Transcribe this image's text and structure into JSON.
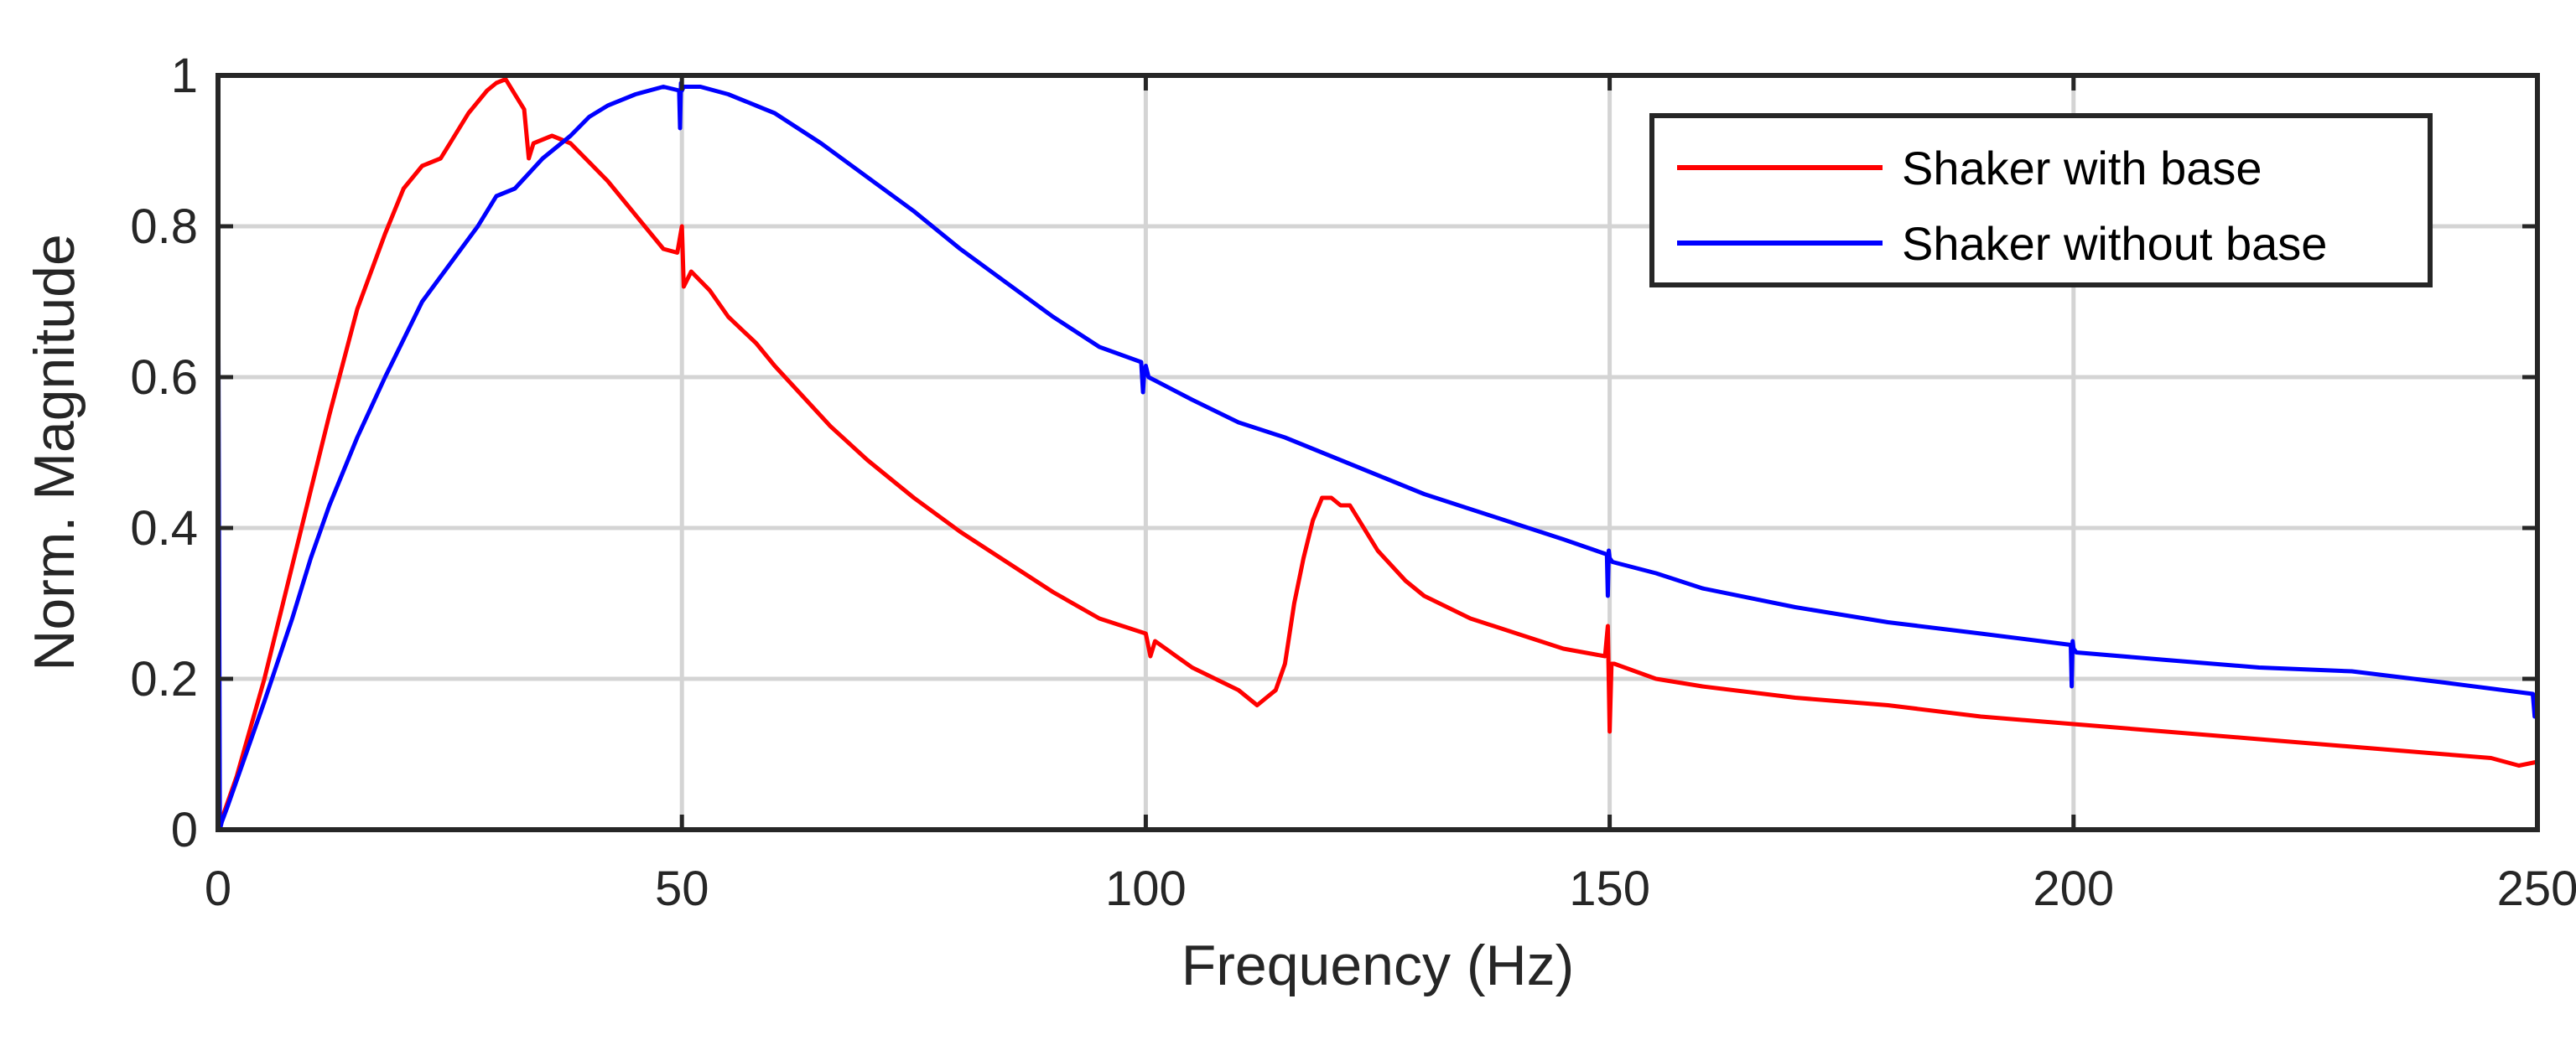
{
  "chart_data": {
    "type": "line",
    "title": "",
    "xlabel": "Frequency (Hz)",
    "ylabel": "Norm. Magnitude",
    "xlim": [
      0,
      250
    ],
    "ylim": [
      0,
      1
    ],
    "xticks": [
      0,
      50,
      100,
      150,
      200,
      250
    ],
    "xtick_labels": [
      "0",
      "50",
      "100",
      "150",
      "200",
      "250"
    ],
    "yticks": [
      0,
      0.2,
      0.4,
      0.6,
      0.8,
      1
    ],
    "ytick_labels": [
      "0",
      "0.2",
      "0.4",
      "0.6",
      "0.8",
      "1"
    ],
    "grid": true,
    "legend_position": "top-right",
    "series": [
      {
        "name": "Shaker with base",
        "color": "#ff0000",
        "x": [
          0,
          2,
          5,
          8,
          10,
          12,
          15,
          18,
          20,
          22,
          24,
          25,
          27,
          29,
          30,
          31,
          32,
          33,
          33.5,
          34,
          35,
          36,
          37,
          38,
          40,
          42,
          44,
          46,
          48,
          49.5,
          50,
          50.2,
          51,
          53,
          55,
          58,
          60,
          63,
          66,
          70,
          75,
          80,
          85,
          90,
          95,
          100,
          100.5,
          101,
          105,
          110,
          112,
          113,
          114,
          115,
          116,
          117,
          118,
          119,
          120,
          121,
          122,
          123,
          125,
          128,
          130,
          135,
          140,
          145,
          149.5,
          149.8,
          150,
          150.2,
          150.5,
          155,
          160,
          170,
          180,
          190,
          200,
          210,
          220,
          230,
          240,
          245,
          248,
          250
        ],
        "y": [
          0,
          0.07,
          0.2,
          0.35,
          0.45,
          0.55,
          0.69,
          0.79,
          0.85,
          0.88,
          0.89,
          0.91,
          0.95,
          0.98,
          0.99,
          0.995,
          0.975,
          0.955,
          0.89,
          0.91,
          0.915,
          0.92,
          0.915,
          0.91,
          0.885,
          0.86,
          0.83,
          0.8,
          0.77,
          0.765,
          0.8,
          0.72,
          0.74,
          0.715,
          0.68,
          0.645,
          0.615,
          0.575,
          0.535,
          0.49,
          0.44,
          0.395,
          0.355,
          0.315,
          0.28,
          0.26,
          0.23,
          0.25,
          0.215,
          0.185,
          0.165,
          0.175,
          0.185,
          0.22,
          0.3,
          0.36,
          0.41,
          0.44,
          0.44,
          0.43,
          0.43,
          0.41,
          0.37,
          0.33,
          0.31,
          0.28,
          0.26,
          0.24,
          0.23,
          0.27,
          0.13,
          0.22,
          0.22,
          0.2,
          0.19,
          0.175,
          0.165,
          0.15,
          0.14,
          0.13,
          0.12,
          0.11,
          0.1,
          0.095,
          0.085,
          0.09
        ]
      },
      {
        "name": "Shaker without base",
        "color": "#0000ff",
        "x": [
          0,
          0.2,
          0.4,
          1,
          3,
          5,
          8,
          10,
          12,
          15,
          18,
          20,
          22,
          25,
          28,
          30,
          32,
          35,
          38,
          40,
          42,
          45,
          48,
          49.7,
          49.8,
          49.9,
          50,
          50.2,
          52,
          55,
          58,
          60,
          65,
          70,
          75,
          80,
          85,
          90,
          95,
          99.5,
          99.7,
          99.8,
          100,
          100.3,
          105,
          110,
          115,
          120,
          125,
          130,
          135,
          140,
          145,
          149.7,
          149.8,
          149.9,
          150,
          150.3,
          155,
          160,
          170,
          180,
          190,
          199.7,
          199.8,
          199.9,
          200,
          200.3,
          210,
          220,
          230,
          240,
          249.5,
          249.7,
          249.9,
          250
        ],
        "y": [
          0.83,
          0,
          0.01,
          0.03,
          0.1,
          0.17,
          0.28,
          0.36,
          0.43,
          0.52,
          0.6,
          0.65,
          0.7,
          0.75,
          0.8,
          0.84,
          0.85,
          0.89,
          0.92,
          0.945,
          0.96,
          0.975,
          0.985,
          0.98,
          0.93,
          0.99,
          0.98,
          0.985,
          0.985,
          0.975,
          0.96,
          0.95,
          0.91,
          0.865,
          0.82,
          0.77,
          0.725,
          0.68,
          0.64,
          0.62,
          0.58,
          0.6,
          0.615,
          0.6,
          0.57,
          0.54,
          0.52,
          0.495,
          0.47,
          0.445,
          0.425,
          0.405,
          0.385,
          0.365,
          0.31,
          0.37,
          0.36,
          0.355,
          0.34,
          0.32,
          0.295,
          0.275,
          0.26,
          0.245,
          0.19,
          0.25,
          0.24,
          0.235,
          0.225,
          0.215,
          0.21,
          0.195,
          0.18,
          0.15,
          0.18,
          0.165
        ]
      }
    ]
  }
}
